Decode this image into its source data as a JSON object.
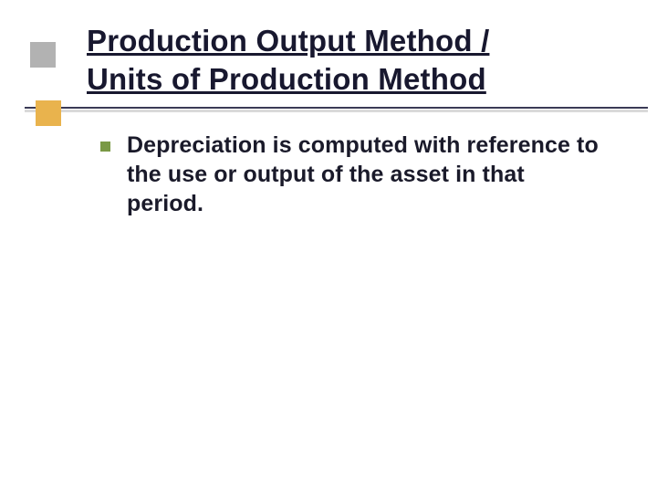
{
  "slide": {
    "title_line1": "Production Output Method /",
    "title_line2": "Units of Production Method",
    "bullets": [
      {
        "text": "Depreciation is computed with reference to the use or output of the asset in that period."
      }
    ]
  },
  "styling": {
    "background_color": "#ffffff",
    "title_color": "#18182f",
    "title_fontsize": 33,
    "title_underline": true,
    "body_color": "#1a1a2a",
    "body_fontsize": 25,
    "body_bold": true,
    "accent_square_gray": "#b2b2b2",
    "accent_square_orange": "#e9b34d",
    "bullet_color": "#7a9945",
    "underline_bar_color": "#3a3a55",
    "shadow_line_color": "#d9d9d9",
    "font_family": "Verdana"
  }
}
